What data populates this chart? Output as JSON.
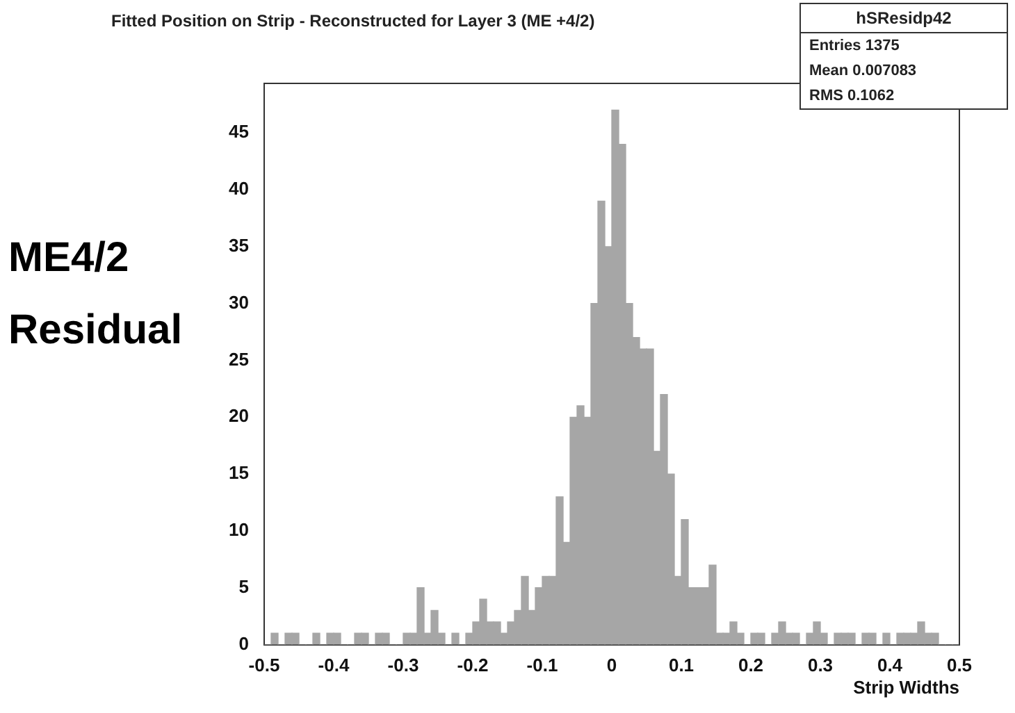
{
  "chart_data": {
    "type": "histogram",
    "title": "Fitted Position on Strip - Reconstructed for Layer 3 (ME +4/2)",
    "xlabel": "Strip Widths",
    "bins": [
      -0.5,
      -0.49,
      -0.48,
      -0.47,
      -0.46,
      -0.45,
      -0.44,
      -0.43,
      -0.42,
      -0.41,
      -0.4,
      -0.39,
      -0.38,
      -0.37,
      -0.36,
      -0.35,
      -0.34,
      -0.33,
      -0.32,
      -0.31,
      -0.3,
      -0.29,
      -0.28,
      -0.27,
      -0.26,
      -0.25,
      -0.24,
      -0.23,
      -0.22,
      -0.21,
      -0.2,
      -0.19,
      -0.18,
      -0.17,
      -0.16,
      -0.15,
      -0.14,
      -0.13,
      -0.12,
      -0.11,
      -0.1,
      -0.09,
      -0.08,
      -0.07,
      -0.06,
      -0.05,
      -0.04,
      -0.03,
      -0.02,
      -0.01,
      0,
      0.01,
      0.02,
      0.03,
      0.04,
      0.05,
      0.06,
      0.07,
      0.08,
      0.09,
      0.1,
      0.11,
      0.12,
      0.13,
      0.14,
      0.15,
      0.16,
      0.17,
      0.18,
      0.19,
      0.2,
      0.21,
      0.22,
      0.23,
      0.24,
      0.25,
      0.26,
      0.27,
      0.28,
      0.29,
      0.3,
      0.31,
      0.32,
      0.33,
      0.34,
      0.35,
      0.36,
      0.37,
      0.38,
      0.39,
      0.4,
      0.41,
      0.42,
      0.43,
      0.44,
      0.45,
      0.46,
      0.47,
      0.48,
      0.49,
      0.5
    ],
    "values": [
      0,
      1,
      0,
      1,
      1,
      0,
      0,
      1,
      0,
      1,
      1,
      0,
      0,
      1,
      1,
      0,
      1,
      1,
      0,
      0,
      1,
      1,
      5,
      1,
      3,
      1,
      0,
      1,
      0,
      1,
      2,
      4,
      2,
      2,
      1,
      2,
      3,
      6,
      3,
      5,
      6,
      6,
      13,
      9,
      20,
      21,
      20,
      30,
      39,
      35,
      47,
      44,
      30,
      27,
      26,
      26,
      17,
      22,
      15,
      6,
      11,
      5,
      5,
      5,
      7,
      1,
      1,
      2,
      1,
      0,
      1,
      1,
      0,
      1,
      2,
      1,
      1,
      0,
      1,
      2,
      1,
      0,
      1,
      1,
      1,
      0,
      1,
      1,
      0,
      1,
      0,
      1,
      1,
      1,
      2,
      1,
      1,
      0,
      0,
      0
    ],
    "color": "#a6a6a6",
    "xlim": [
      -0.5,
      0.5
    ],
    "xticks": [
      -0.5,
      -0.4,
      -0.3,
      -0.2,
      -0.1,
      0,
      0.1,
      0.2,
      0.3,
      0.4,
      0.5
    ],
    "ylim": [
      0,
      49.35
    ],
    "yticks": [
      0,
      5,
      10,
      15,
      20,
      25,
      30,
      35,
      40,
      45
    ],
    "annotations": [
      "ME4/2\nResidual",
      "hSResidp42",
      "Entries 1375",
      "Mean 0.007083",
      "RMS 0.1062"
    ]
  }
}
